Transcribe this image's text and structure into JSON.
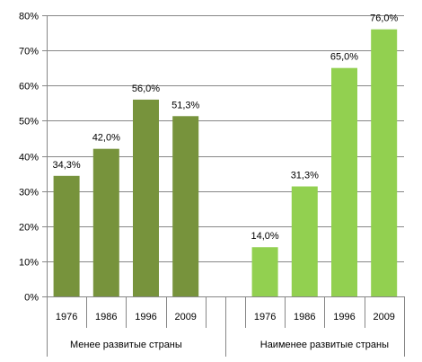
{
  "chart_data": {
    "type": "bar",
    "title": "",
    "xlabel": "",
    "ylabel": "",
    "ylim": [
      0,
      80
    ],
    "y_ticks": [
      0,
      10,
      20,
      30,
      40,
      50,
      60,
      70,
      80
    ],
    "y_tick_labels": [
      "0%",
      "10%",
      "20%",
      "30%",
      "40%",
      "50%",
      "60%",
      "70%",
      "80%"
    ],
    "grid": true,
    "legend": "none",
    "groups": [
      {
        "label": "Менее развитые страны",
        "color": "#77933C",
        "categories": [
          "1976",
          "1986",
          "1996",
          "2009"
        ],
        "values": [
          34.3,
          42.0,
          56.0,
          51.3
        ],
        "value_labels": [
          "34,3%",
          "42,0%",
          "56,0%",
          "51,3%"
        ]
      },
      {
        "label": "Наименее развитые страны",
        "color": "#92D050",
        "categories": [
          "1976",
          "1986",
          "1996",
          "2009"
        ],
        "values": [
          14.0,
          31.3,
          65.0,
          76.0
        ],
        "value_labels": [
          "14,0%",
          "31,3%",
          "65,0%",
          "76,0%"
        ]
      }
    ]
  }
}
